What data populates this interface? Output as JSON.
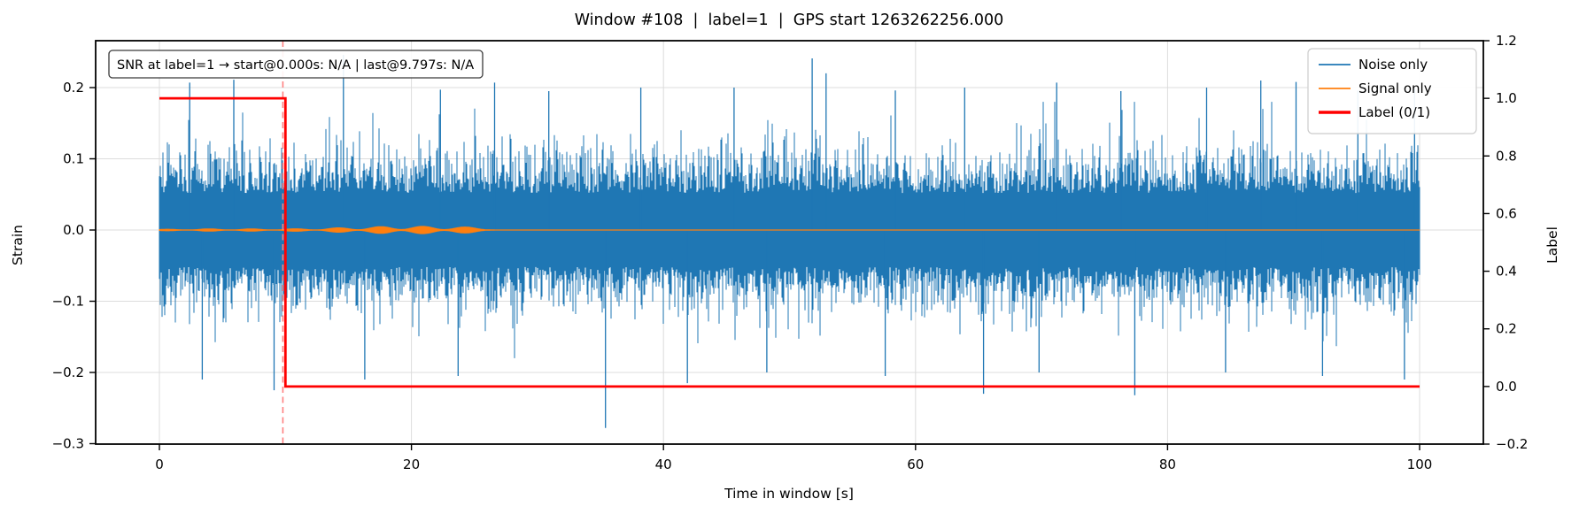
{
  "figure": {
    "title": "Window #108  |  label=1  |  GPS start 1263262256.000",
    "xlabel": "Time in window [s]",
    "ylabel_left": "Strain",
    "ylabel_right": "Label",
    "annotation": "SNR at label=1 → start@0.000s: N/A | last@9.797s: N/A"
  },
  "legend": {
    "entries": [
      {
        "label": "Noise only",
        "color": "#1f77b4",
        "linewidth": 1.8
      },
      {
        "label": "Signal only",
        "color": "#ff7f0e",
        "linewidth": 1.8
      },
      {
        "label": "Label (0/1)",
        "color": "#ff0000",
        "linewidth": 3.4
      }
    ]
  },
  "chart_data": {
    "type": "line",
    "title": "Window #108  |  label=1  |  GPS start 1263262256.000",
    "xlabel": "Time in window [s]",
    "ylabel": "Strain",
    "ylabel_right": "Label",
    "xlim": [
      -5.1,
      105.1
    ],
    "ylim": [
      -0.303,
      0.266
    ],
    "ylim_right": [
      -0.2,
      1.2
    ],
    "x_ticks": [
      0,
      20,
      40,
      60,
      80,
      100
    ],
    "y_ticks": [
      0.2,
      0.1,
      0.0,
      -0.1,
      -0.2,
      -0.3
    ],
    "y_ticks_right": [
      1.2,
      1.0,
      0.8,
      0.6,
      0.4,
      0.2,
      0.0,
      -0.2
    ],
    "grid": true,
    "legend_position": "upper right",
    "annotation_text": "SNR at label=1 → start@0.000s: N/A | last@9.797s: N/A",
    "series": [
      {
        "name": "Noise only",
        "color": "#1f77b4",
        "kind": "stochastic_noise_band",
        "mean": 0.0,
        "core_halfwidth": 0.052,
        "halfwidth_sigma": 0.034,
        "tail_probability": 0.09,
        "tail_scale": 0.02,
        "max_halfwidth": 0.18,
        "spikes_up": [
          [
            2.4,
            0.207
          ],
          [
            5.9,
            0.211
          ],
          [
            14.6,
            0.246
          ],
          [
            22.3,
            0.197
          ],
          [
            26.6,
            0.207
          ],
          [
            30.9,
            0.195
          ],
          [
            38.2,
            0.2
          ],
          [
            45.6,
            0.2
          ],
          [
            51.8,
            0.241
          ],
          [
            52.9,
            0.22
          ],
          [
            58.4,
            0.196
          ],
          [
            63.9,
            0.2
          ],
          [
            71.2,
            0.207
          ],
          [
            76.3,
            0.195
          ],
          [
            83.1,
            0.2
          ],
          [
            87.4,
            0.21
          ],
          [
            90.2,
            0.208
          ],
          [
            95.1,
            0.196
          ],
          [
            99.6,
            0.2
          ]
        ],
        "spikes_down": [
          [
            3.4,
            -0.21
          ],
          [
            9.1,
            -0.225
          ],
          [
            16.3,
            -0.21
          ],
          [
            23.7,
            -0.205
          ],
          [
            35.4,
            -0.278
          ],
          [
            41.9,
            -0.215
          ],
          [
            48.2,
            -0.2
          ],
          [
            57.6,
            -0.205
          ],
          [
            65.4,
            -0.23
          ],
          [
            69.8,
            -0.2
          ],
          [
            77.4,
            -0.232
          ],
          [
            84.6,
            -0.2
          ],
          [
            92.3,
            -0.205
          ],
          [
            98.8,
            -0.21
          ]
        ]
      },
      {
        "name": "Signal only",
        "color": "#ff7f0e",
        "kind": "chirp",
        "active_interval": [
          0,
          25.8
        ],
        "base_amplitude": 0.0016,
        "amplitude_growth_per_s": 0.00022,
        "peak_amplitude": 0.007,
        "lump_angular_freq": 1.85,
        "residual_amplitude": 0.0003,
        "taper_end": 27.5
      },
      {
        "name": "Label (0/1)",
        "color": "#ff0000",
        "kind": "step",
        "axis": "right",
        "x": [
          0,
          10,
          10,
          100
        ],
        "y": [
          1,
          1,
          0,
          0
        ]
      }
    ],
    "vline": {
      "x": 9.797,
      "color": "#ff8080",
      "style": "dashed"
    }
  }
}
